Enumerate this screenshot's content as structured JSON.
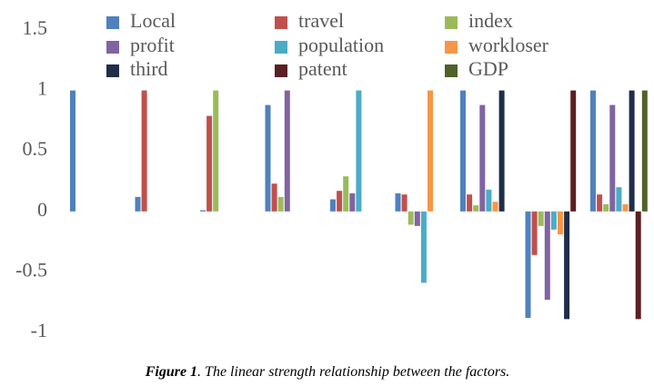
{
  "chart_data": {
    "type": "bar",
    "categories": [
      null,
      null,
      null,
      null,
      null,
      null,
      null,
      null,
      null
    ],
    "series": [
      {
        "name": "Local",
        "color": "#4f81bd",
        "values": [
          1,
          0.12,
          0.01,
          0.88,
          0.1,
          0.15,
          1,
          -0.88,
          1
        ]
      },
      {
        "name": "travel",
        "color": "#c0504d",
        "values": [
          null,
          1,
          0.79,
          0.23,
          0.17,
          0.14,
          0.14,
          -0.36,
          0.14
        ]
      },
      {
        "name": "index",
        "color": "#9bbb59",
        "values": [
          null,
          null,
          1,
          0.12,
          0.29,
          -0.11,
          0.05,
          -0.12,
          0.06
        ]
      },
      {
        "name": "profit",
        "color": "#8064a2",
        "values": [
          null,
          null,
          null,
          1,
          0.15,
          -0.12,
          0.88,
          -0.73,
          0.88
        ]
      },
      {
        "name": "population",
        "color": "#4bacc6",
        "values": [
          null,
          null,
          null,
          null,
          1,
          -0.59,
          0.18,
          -0.15,
          0.2
        ]
      },
      {
        "name": "workloser",
        "color": "#f79646",
        "values": [
          null,
          null,
          null,
          null,
          null,
          1,
          0.08,
          -0.19,
          0.06
        ]
      },
      {
        "name": "third",
        "color": "#1f2d4a",
        "values": [
          null,
          null,
          null,
          null,
          null,
          null,
          1,
          -0.89,
          1
        ]
      },
      {
        "name": "patent",
        "color": "#5a1f22",
        "values": [
          null,
          null,
          null,
          null,
          null,
          null,
          null,
          1,
          -0.89
        ]
      },
      {
        "name": "GDP",
        "color": "#4f6228",
        "values": [
          null,
          null,
          null,
          null,
          null,
          null,
          null,
          null,
          1
        ]
      }
    ],
    "ylim": [
      -1,
      1.5
    ],
    "yticks": [
      -1,
      -0.5,
      0,
      0.5,
      1,
      1.5
    ],
    "grid": false,
    "caption_label": "Figure 1",
    "caption_text": ". The linear strength relationship between the factors."
  }
}
